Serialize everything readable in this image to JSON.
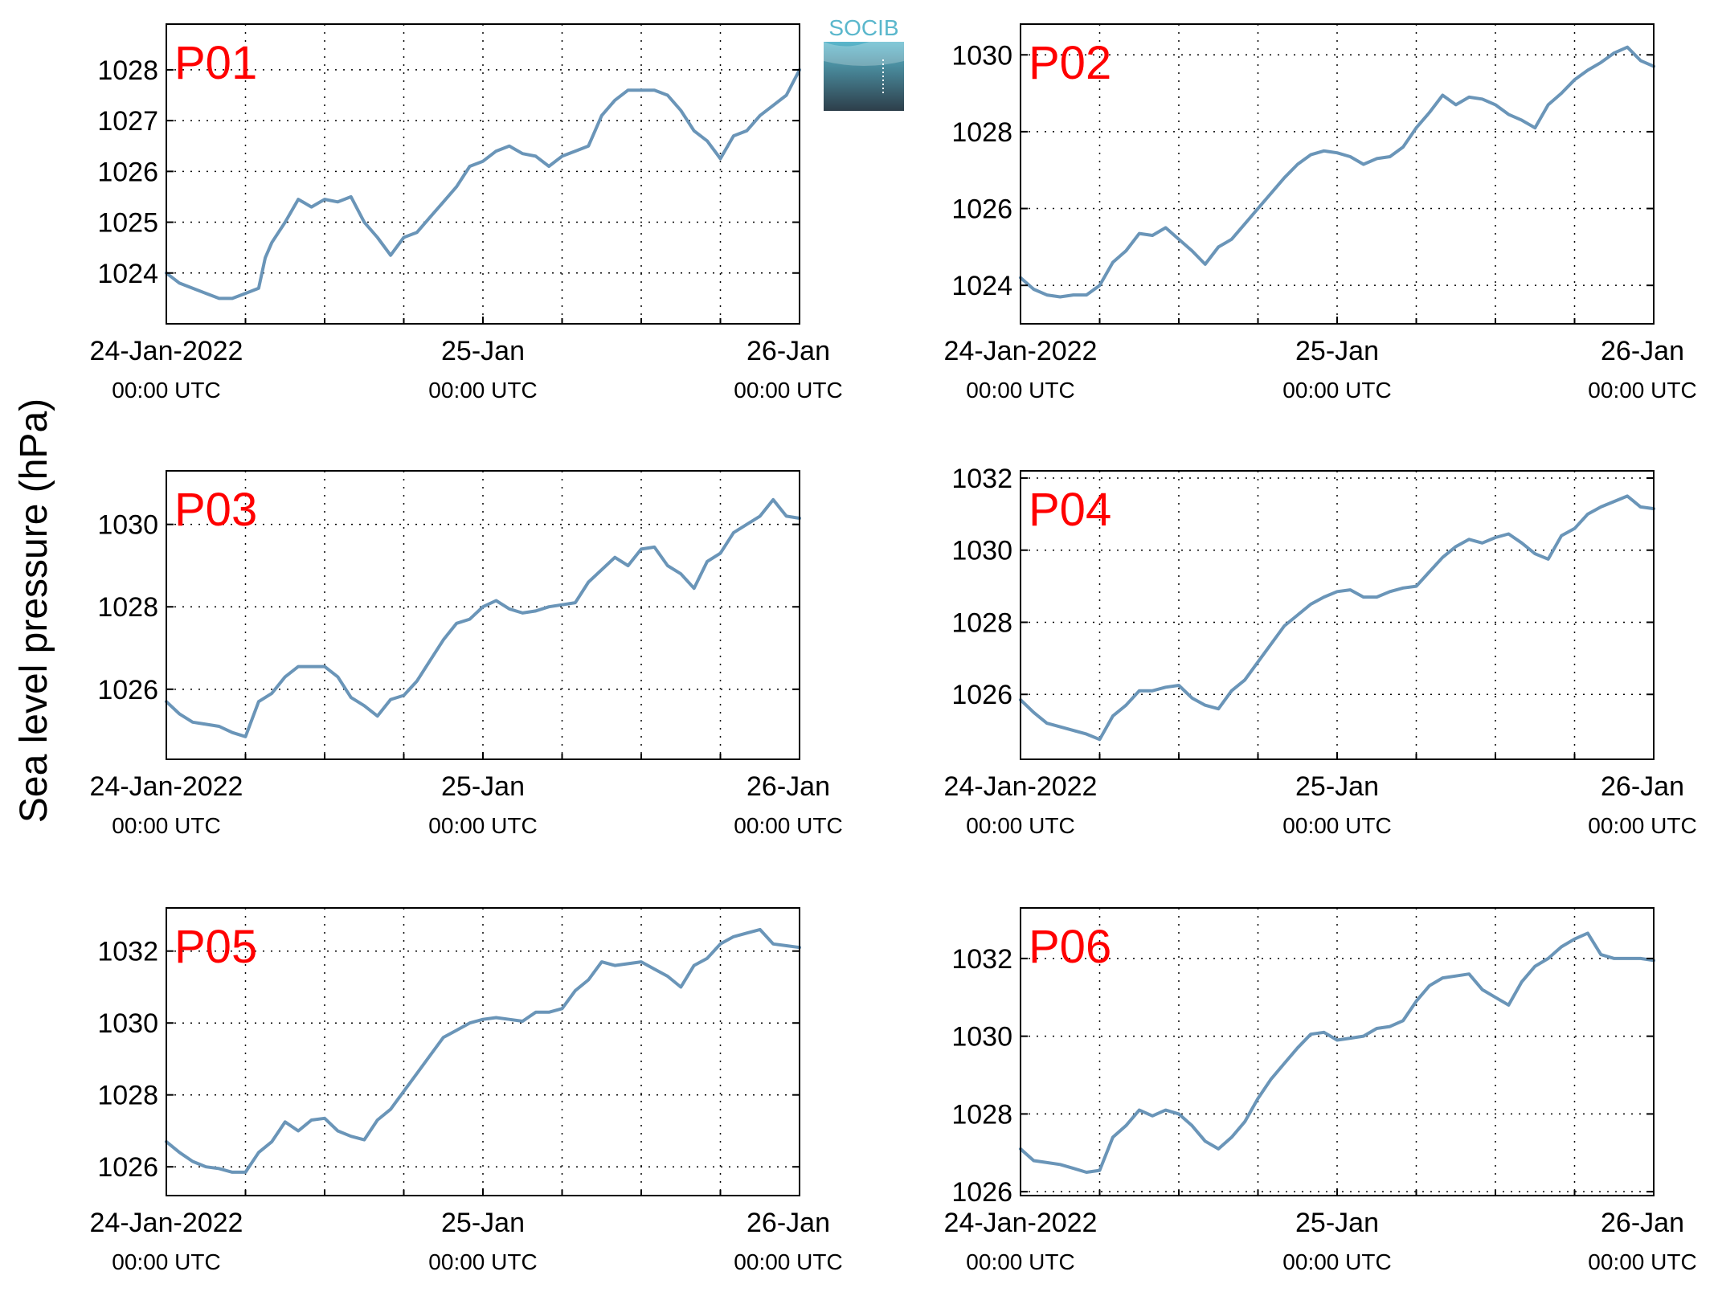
{
  "ylabel": "Sea level pressure (hPa)",
  "logo": {
    "text": "SOCIB",
    "colors": {
      "text": "#5ab7cc",
      "band_top": "#5ab7cc",
      "band_bottom": "#2d3e4a"
    }
  },
  "colors": {
    "line": "#6a95b8",
    "station_label": "#ff0000",
    "axis": "#000000",
    "grid": "#000000"
  },
  "chart_data": [
    {
      "type": "line",
      "station": "P01",
      "x_ticks": [
        {
          "date": "24-Jan-2022",
          "time": "00:00 UTC"
        },
        {
          "date": "25-Jan",
          "time": "00:00 UTC"
        },
        {
          "date": "26-Jan",
          "time": "00:00 UTC"
        }
      ],
      "xlim": [
        "2022-01-24 00:00",
        "2022-01-26 00:00"
      ],
      "ylim": [
        1023.0,
        1028.9
      ],
      "yticks": [
        1024,
        1025,
        1026,
        1027,
        1028
      ],
      "grid": true,
      "series": [
        {
          "x_hours": [
            0,
            1,
            2,
            3,
            4,
            5,
            6,
            7,
            7.5,
            8,
            9,
            10,
            11,
            12,
            13,
            14,
            15,
            16,
            17,
            18,
            19,
            20,
            21,
            22,
            23,
            24,
            25,
            26,
            27,
            28,
            29,
            30,
            31,
            32,
            33,
            34,
            35,
            36,
            37,
            38,
            39,
            40,
            41,
            42,
            43,
            44,
            45,
            46,
            47,
            48
          ],
          "values": [
            1024.0,
            1023.8,
            1023.7,
            1023.6,
            1023.5,
            1023.5,
            1023.6,
            1023.7,
            1024.3,
            1024.6,
            1025.0,
            1025.45,
            1025.3,
            1025.45,
            1025.4,
            1025.5,
            1025.0,
            1024.7,
            1024.35,
            1024.7,
            1024.8,
            1025.1,
            1025.4,
            1025.7,
            1026.1,
            1026.2,
            1026.4,
            1026.5,
            1026.35,
            1026.3,
            1026.1,
            1026.3,
            1026.4,
            1026.5,
            1027.1,
            1027.4,
            1027.6,
            1027.6,
            1027.6,
            1027.5,
            1027.2,
            1026.8,
            1026.6,
            1026.25,
            1026.7,
            1026.8,
            1027.1,
            1027.3,
            1027.5,
            1028.0
          ]
        }
      ]
    },
    {
      "type": "line",
      "station": "P02",
      "x_ticks": [
        {
          "date": "24-Jan-2022",
          "time": "00:00 UTC"
        },
        {
          "date": "25-Jan",
          "time": "00:00 UTC"
        },
        {
          "date": "26-Jan",
          "time": "00:00 UTC"
        }
      ],
      "xlim": [
        "2022-01-24 00:00",
        "2022-01-26 00:00"
      ],
      "ylim": [
        1023.0,
        1030.8
      ],
      "yticks": [
        1024,
        1026,
        1028,
        1030
      ],
      "grid": true,
      "series": [
        {
          "x_hours": [
            0,
            1,
            2,
            3,
            4,
            5,
            6,
            7,
            8,
            9,
            10,
            11,
            12,
            13,
            14,
            15,
            16,
            17,
            18,
            19,
            20,
            21,
            22,
            23,
            24,
            25,
            26,
            27,
            28,
            29,
            30,
            31,
            32,
            33,
            34,
            35,
            36,
            37,
            38,
            39,
            40,
            41,
            42,
            43,
            44,
            45,
            46,
            47,
            48
          ],
          "values": [
            1024.2,
            1023.9,
            1023.75,
            1023.7,
            1023.75,
            1023.75,
            1024.0,
            1024.6,
            1024.9,
            1025.35,
            1025.3,
            1025.5,
            1025.2,
            1024.9,
            1024.55,
            1025.0,
            1025.2,
            1025.6,
            1026.0,
            1026.4,
            1026.8,
            1027.15,
            1027.4,
            1027.5,
            1027.45,
            1027.35,
            1027.15,
            1027.3,
            1027.35,
            1027.6,
            1028.1,
            1028.5,
            1028.95,
            1028.7,
            1028.9,
            1028.85,
            1028.7,
            1028.45,
            1028.3,
            1028.1,
            1028.7,
            1029.0,
            1029.35,
            1029.6,
            1029.8,
            1030.05,
            1030.2,
            1029.85,
            1029.7
          ]
        }
      ]
    },
    {
      "type": "line",
      "station": "P03",
      "x_ticks": [
        {
          "date": "24-Jan-2022",
          "time": "00:00 UTC"
        },
        {
          "date": "25-Jan",
          "time": "00:00 UTC"
        },
        {
          "date": "26-Jan",
          "time": "00:00 UTC"
        }
      ],
      "xlim": [
        "2022-01-24 00:00",
        "2022-01-26 00:00"
      ],
      "ylim": [
        1024.3,
        1031.3
      ],
      "yticks": [
        1026,
        1028,
        1030
      ],
      "grid": true,
      "series": [
        {
          "x_hours": [
            0,
            1,
            2,
            3,
            4,
            5,
            6,
            7,
            8,
            9,
            10,
            11,
            12,
            13,
            14,
            15,
            16,
            17,
            18,
            19,
            20,
            21,
            22,
            23,
            24,
            25,
            26,
            27,
            28,
            29,
            30,
            31,
            32,
            33,
            34,
            35,
            36,
            37,
            38,
            39,
            40,
            41,
            42,
            43,
            44,
            45,
            46,
            47,
            48
          ],
          "values": [
            1025.7,
            1025.4,
            1025.2,
            1025.15,
            1025.1,
            1024.95,
            1024.85,
            1025.7,
            1025.9,
            1026.3,
            1026.55,
            1026.55,
            1026.55,
            1026.3,
            1025.8,
            1025.6,
            1025.35,
            1025.75,
            1025.85,
            1026.2,
            1026.7,
            1027.2,
            1027.6,
            1027.7,
            1028.0,
            1028.15,
            1027.95,
            1027.85,
            1027.9,
            1028.0,
            1028.05,
            1028.1,
            1028.6,
            1028.9,
            1029.2,
            1029.0,
            1029.4,
            1029.45,
            1029.0,
            1028.8,
            1028.45,
            1029.1,
            1029.3,
            1029.8,
            1030.0,
            1030.2,
            1030.6,
            1030.2,
            1030.15
          ]
        }
      ]
    },
    {
      "type": "line",
      "station": "P04",
      "x_ticks": [
        {
          "date": "24-Jan-2022",
          "time": "00:00 UTC"
        },
        {
          "date": "25-Jan",
          "time": "00:00 UTC"
        },
        {
          "date": "26-Jan",
          "time": "00:00 UTC"
        }
      ],
      "xlim": [
        "2022-01-24 00:00",
        "2022-01-26 00:00"
      ],
      "ylim": [
        1024.2,
        1032.2
      ],
      "yticks": [
        1026,
        1028,
        1030,
        1032
      ],
      "grid": true,
      "series": [
        {
          "x_hours": [
            0,
            1,
            2,
            3,
            4,
            5,
            6,
            7,
            8,
            9,
            10,
            11,
            12,
            13,
            14,
            15,
            16,
            17,
            18,
            19,
            20,
            21,
            22,
            23,
            24,
            25,
            26,
            27,
            28,
            29,
            30,
            31,
            32,
            33,
            34,
            35,
            36,
            37,
            38,
            39,
            40,
            41,
            42,
            43,
            44,
            45,
            46,
            47,
            48
          ],
          "values": [
            1025.85,
            1025.5,
            1025.2,
            1025.1,
            1025.0,
            1024.9,
            1024.75,
            1025.4,
            1025.7,
            1026.1,
            1026.1,
            1026.2,
            1026.25,
            1025.9,
            1025.7,
            1025.6,
            1026.1,
            1026.4,
            1026.9,
            1027.4,
            1027.9,
            1028.2,
            1028.5,
            1028.7,
            1028.85,
            1028.9,
            1028.7,
            1028.7,
            1028.85,
            1028.95,
            1029.0,
            1029.4,
            1029.8,
            1030.1,
            1030.3,
            1030.2,
            1030.35,
            1030.45,
            1030.2,
            1029.9,
            1029.75,
            1030.4,
            1030.6,
            1031.0,
            1031.2,
            1031.35,
            1031.5,
            1031.2,
            1031.15
          ]
        }
      ]
    },
    {
      "type": "line",
      "station": "P05",
      "x_ticks": [
        {
          "date": "24-Jan-2022",
          "time": "00:00 UTC"
        },
        {
          "date": "25-Jan",
          "time": "00:00 UTC"
        },
        {
          "date": "26-Jan",
          "time": "00:00 UTC"
        }
      ],
      "xlim": [
        "2022-01-24 00:00",
        "2022-01-26 00:00"
      ],
      "ylim": [
        1025.2,
        1033.2
      ],
      "yticks": [
        1026,
        1028,
        1030,
        1032
      ],
      "grid": true,
      "series": [
        {
          "x_hours": [
            0,
            1,
            2,
            3,
            4,
            5,
            6,
            7,
            8,
            9,
            10,
            11,
            12,
            13,
            14,
            15,
            16,
            17,
            18,
            19,
            20,
            21,
            22,
            23,
            24,
            25,
            26,
            27,
            28,
            29,
            30,
            31,
            32,
            33,
            34,
            35,
            36,
            37,
            38,
            39,
            40,
            41,
            42,
            43,
            44,
            45,
            46,
            47,
            48
          ],
          "values": [
            1026.7,
            1026.4,
            1026.15,
            1026.0,
            1025.95,
            1025.85,
            1025.85,
            1026.4,
            1026.7,
            1027.25,
            1027.0,
            1027.3,
            1027.35,
            1027.0,
            1026.85,
            1026.75,
            1027.3,
            1027.6,
            1028.1,
            1028.6,
            1029.1,
            1029.6,
            1029.8,
            1030.0,
            1030.1,
            1030.15,
            1030.1,
            1030.05,
            1030.3,
            1030.3,
            1030.4,
            1030.9,
            1031.2,
            1031.7,
            1031.6,
            1031.65,
            1031.7,
            1031.5,
            1031.3,
            1031.0,
            1031.6,
            1031.8,
            1032.2,
            1032.4,
            1032.5,
            1032.6,
            1032.2,
            1032.15,
            1032.1
          ]
        }
      ]
    },
    {
      "type": "line",
      "station": "P06",
      "x_ticks": [
        {
          "date": "24-Jan-2022",
          "time": "00:00 UTC"
        },
        {
          "date": "25-Jan",
          "time": "00:00 UTC"
        },
        {
          "date": "26-Jan",
          "time": "00:00 UTC"
        }
      ],
      "xlim": [
        "2022-01-24 00:00",
        "2022-01-26 00:00"
      ],
      "ylim": [
        1025.9,
        1033.3
      ],
      "yticks": [
        1026,
        1028,
        1030,
        1032
      ],
      "grid": true,
      "series": [
        {
          "x_hours": [
            0,
            1,
            2,
            3,
            4,
            5,
            6,
            7,
            8,
            9,
            10,
            11,
            12,
            13,
            14,
            15,
            16,
            17,
            18,
            19,
            20,
            21,
            22,
            23,
            24,
            25,
            26,
            27,
            28,
            29,
            30,
            31,
            32,
            33,
            34,
            35,
            36,
            37,
            38,
            39,
            40,
            41,
            42,
            43,
            44,
            45,
            46,
            47,
            48
          ],
          "values": [
            1027.1,
            1026.8,
            1026.75,
            1026.7,
            1026.6,
            1026.5,
            1026.55,
            1027.4,
            1027.7,
            1028.1,
            1027.95,
            1028.1,
            1028.0,
            1027.7,
            1027.3,
            1027.1,
            1027.4,
            1027.8,
            1028.4,
            1028.9,
            1029.3,
            1029.7,
            1030.05,
            1030.1,
            1029.9,
            1029.95,
            1030.0,
            1030.2,
            1030.25,
            1030.4,
            1030.9,
            1031.3,
            1031.5,
            1031.55,
            1031.6,
            1031.2,
            1031.0,
            1030.8,
            1031.4,
            1031.8,
            1032.0,
            1032.3,
            1032.5,
            1032.65,
            1032.1,
            1032.0,
            1032.0,
            1032.0,
            1031.95
          ]
        }
      ]
    }
  ]
}
